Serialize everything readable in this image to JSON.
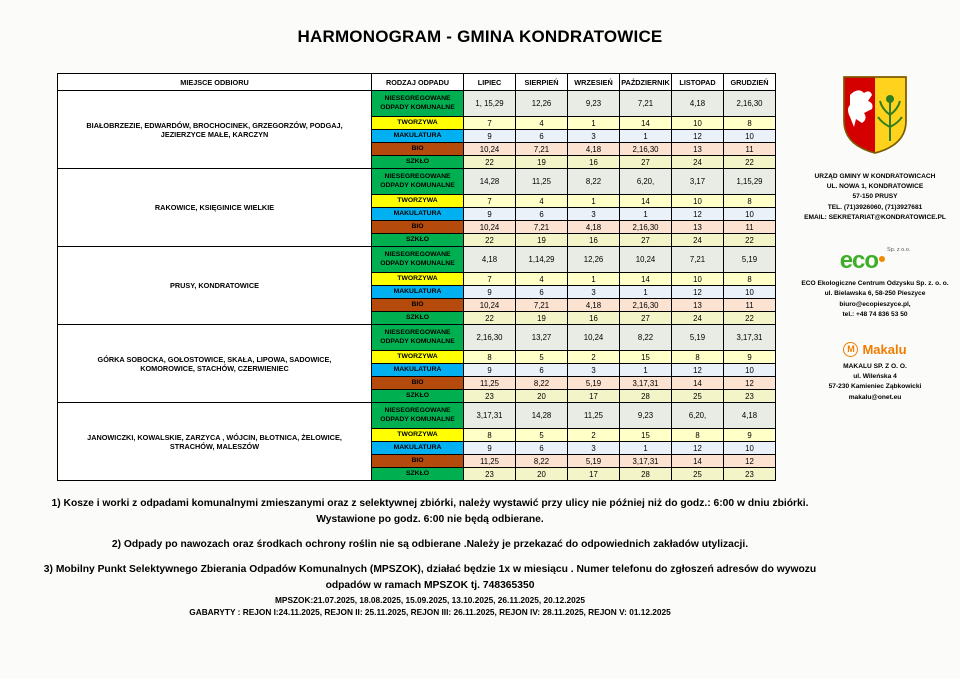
{
  "title": "HARMONOGRAM - GMINA KONDRATOWICE",
  "table": {
    "headers": [
      "MIEJSCE ODBIORU",
      "RODZAJ ODPADU",
      "LIPIEC",
      "SIERPIEŃ",
      "WRZESIEŃ",
      "PAŹDZIERNIK",
      "LISTOPAD",
      "GRUDZIEŃ"
    ],
    "waste_types": [
      {
        "label": "NIESEGREGOWANE ODPADY KOMUNALNE",
        "label_bg": "#00b050",
        "cell_bg": "#e9ece4"
      },
      {
        "label": "TWORZYWA",
        "label_bg": "#ffff00",
        "cell_bg": "#ffffc8"
      },
      {
        "label": "MAKULATURA",
        "label_bg": "#00b0f0",
        "cell_bg": "#eaf1f8"
      },
      {
        "label": "BIO",
        "label_bg": "#b44a0c",
        "cell_bg": "#fbe2d1"
      },
      {
        "label": "SZKŁO",
        "label_bg": "#00b050",
        "cell_bg": "#f3f5c8"
      }
    ],
    "groups": [
      {
        "area": "BIAŁOBRZEZIE, EDWARDÓW, BROCHOCINEK, GRZEGORZÓW, PODGAJ, JEZIERZYCE MAŁE, KARCZYN",
        "schedule": [
          [
            "1, 15,29",
            "12,26",
            "9,23",
            "7,21",
            "4,18",
            "2,16,30"
          ],
          [
            "7",
            "4",
            "1",
            "14",
            "10",
            "8"
          ],
          [
            "9",
            "6",
            "3",
            "1",
            "12",
            "10"
          ],
          [
            "10,24",
            "7,21",
            "4,18",
            "2,16,30",
            "13",
            "11"
          ],
          [
            "22",
            "19",
            "16",
            "27",
            "24",
            "22"
          ]
        ]
      },
      {
        "area": "RAKOWICE, KSIĘGINICE WIELKIE",
        "schedule": [
          [
            "14,28",
            "11,25",
            "8,22",
            "6,20,",
            "3,17",
            "1,15,29"
          ],
          [
            "7",
            "4",
            "1",
            "14",
            "10",
            "8"
          ],
          [
            "9",
            "6",
            "3",
            "1",
            "12",
            "10"
          ],
          [
            "10,24",
            "7,21",
            "4,18",
            "2,16,30",
            "13",
            "11"
          ],
          [
            "22",
            "19",
            "16",
            "27",
            "24",
            "22"
          ]
        ]
      },
      {
        "area": "PRUSY, KONDRATOWICE",
        "schedule": [
          [
            "4,18",
            "1,14,29",
            "12,26",
            "10,24",
            "7,21",
            "5,19"
          ],
          [
            "7",
            "4",
            "1",
            "14",
            "10",
            "8"
          ],
          [
            "9",
            "6",
            "3",
            "1",
            "12",
            "10"
          ],
          [
            "10,24",
            "7,21",
            "4,18",
            "2,16,30",
            "13",
            "11"
          ],
          [
            "22",
            "19",
            "16",
            "27",
            "24",
            "22"
          ]
        ]
      },
      {
        "area": "GÓRKA SOBOCKA, GOŁOSTOWICE, SKAŁA, LIPOWA, SADOWICE, KOMOROWICE, STACHÓW, CZERWIENIEC",
        "schedule": [
          [
            "2,16,30",
            "13,27",
            "10,24",
            "8,22",
            "5,19",
            "3,17,31"
          ],
          [
            "8",
            "5",
            "2",
            "15",
            "8",
            "9"
          ],
          [
            "9",
            "6",
            "3",
            "1",
            "12",
            "10"
          ],
          [
            "11,25",
            "8,22",
            "5,19",
            "3,17,31",
            "14",
            "12"
          ],
          [
            "23",
            "20",
            "17",
            "28",
            "25",
            "23"
          ]
        ]
      },
      {
        "area": "JANOWICZKI, KOWALSKIE, ZARZYCA , WÓJCIN, BŁOTNICA, ŻELOWICE, STRACHÓW, MALESZÓW",
        "schedule": [
          [
            "3,17,31",
            "14,28",
            "11,25",
            "9,23",
            "6,20,",
            "4,18"
          ],
          [
            "8",
            "5",
            "2",
            "15",
            "8",
            "9"
          ],
          [
            "9",
            "6",
            "3",
            "1",
            "12",
            "10"
          ],
          [
            "11,25",
            "8,22",
            "5,19",
            "3,17,31",
            "14",
            "12"
          ],
          [
            "23",
            "20",
            "17",
            "28",
            "25",
            "23"
          ]
        ]
      }
    ]
  },
  "sidebar": {
    "gmina": {
      "lines": [
        "URZĄD GMINY W KONDRATOWICACH",
        "UL. NOWA 1, KONDRATOWICE",
        "57-150 PRUSY",
        "TEL. (71)3926060, (71)3927681",
        "EMAIL: SEKRETARIAT@KONDRATOWICE.PL"
      ]
    },
    "eco_logo": {
      "text": "eco",
      "suffix": "Sp. z o.o."
    },
    "eco": {
      "lines": [
        "ECO Ekologiczne Centrum Odzysku Sp. z. o. o.",
        "ul. Bielawska 6,  58-250 Pieszyce",
        "biuro@ecopieszyce.pl,",
        "tel.: +48 74 836 53 50"
      ]
    },
    "makalu_logo": {
      "initial": "M",
      "text": "Makalu"
    },
    "makalu": {
      "lines": [
        "MAKALU SP. Z O. O.",
        "ul. Wileńska 4",
        "57-230 Kamieniec Ząbkowicki",
        "makalu@onet.eu"
      ]
    }
  },
  "notes": [
    {
      "lines": [
        "1) Kosze i worki z odpadami komunalnymi zmieszanymi oraz z selektywnej zbiórki, należy wystawić przy ulicy nie później niż do godz.: 6:00 w dniu zbiórki.",
        "Wystawione po godz. 6:00 nie będą odbierane."
      ]
    },
    {
      "lines": [
        "2) Odpady po nawozach oraz środkach ochrony roślin nie są odbierane .Należy je przekazać do odpowiednich zakładów utylizacji."
      ]
    },
    {
      "lines": [
        "3) Mobilny Punkt Selektywnego Zbierania Odpadów Komunalnych (MPSZOK), działać będzie 1x w miesiącu . Numer telefonu do zgłoszeń adresów do wywozu",
        "odpadów w ramach MPSZOK tj. 748365350",
        "MPSZOK:21.07.2025, 18.08.2025, 15.09.2025, 13.10.2025, 26.11.2025, 20.12.2025",
        "GABARYTY : REJON I:24.11.2025, REJON II: 25.11.2025, REJON III: 26.11.2025, REJON IV: 28.11.2025, REJON V: 01.12.2025"
      ]
    }
  ]
}
